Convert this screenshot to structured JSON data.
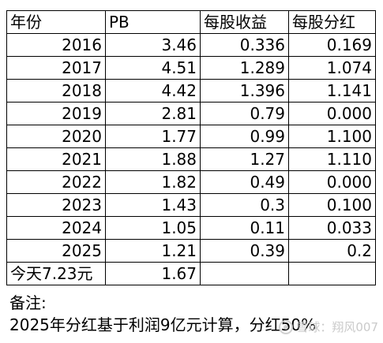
{
  "table": {
    "headers": [
      "年份",
      "PB",
      "每股收益",
      "每股分红"
    ],
    "rows": [
      [
        "2016",
        "3.46",
        "0.336",
        "0.169"
      ],
      [
        "2017",
        "4.51",
        "1.289",
        "1.074"
      ],
      [
        "2018",
        "4.42",
        "1.396",
        "1.141"
      ],
      [
        "2019",
        "2.81",
        "0.79",
        "0.000"
      ],
      [
        "2020",
        "1.77",
        "0.99",
        "1.100"
      ],
      [
        "2021",
        "1.88",
        "1.27",
        "1.110"
      ],
      [
        "2022",
        "1.82",
        "0.49",
        "0.000"
      ],
      [
        "2023",
        "1.43",
        "0.3",
        "0.100"
      ],
      [
        "2024",
        "1.05",
        "0.11",
        "0.033"
      ],
      [
        "2025",
        "1.21",
        "0.39",
        "0.2"
      ]
    ],
    "today_row": [
      "今天7.23元",
      "1.67",
      "",
      ""
    ]
  },
  "notes": {
    "label": "备注:",
    "text": "2025年分红基于利润9亿元计算，分红50%"
  },
  "watermark": {
    "icon": "snowball-icon",
    "text": "雪球：翔风007"
  }
}
